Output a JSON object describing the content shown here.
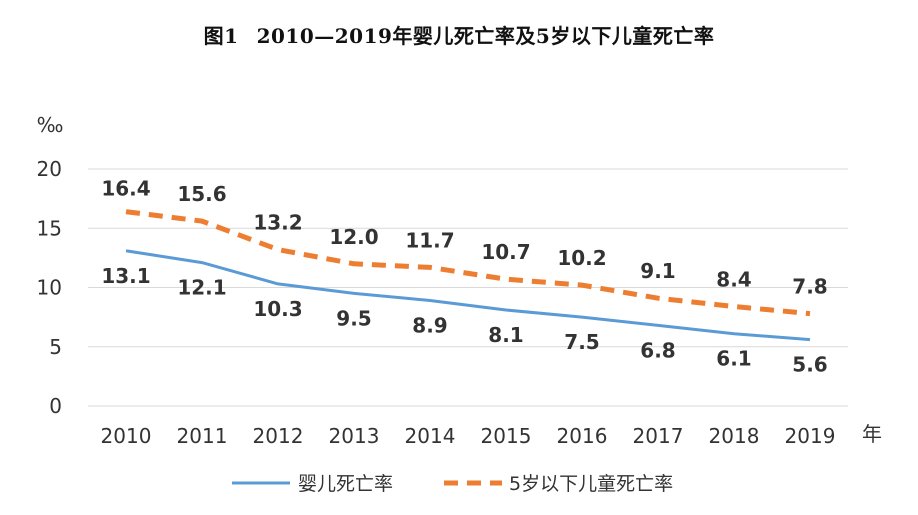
{
  "title": {
    "fig_no": "图1",
    "text": "2010—2019年婴儿死亡率及5岁以下儿童死亡率"
  },
  "chart_data": {
    "type": "line",
    "title": "2010—2019年婴儿死亡率及5岁以下儿童死亡率",
    "xlabel": "年",
    "ylabel": "‰",
    "ylim": [
      0,
      20
    ],
    "yticks": [
      "0",
      "5",
      "10",
      "15",
      "20"
    ],
    "grid": true,
    "legend": "bottom",
    "categories": [
      "2010",
      "2011",
      "2012",
      "2013",
      "2014",
      "2015",
      "2016",
      "2017",
      "2018",
      "2019"
    ],
    "series": [
      {
        "name": "婴儿死亡率",
        "style": "solid",
        "color": "#5B9BD5",
        "values": [
          13.1,
          12.1,
          10.3,
          9.5,
          8.9,
          8.1,
          7.5,
          6.8,
          6.1,
          5.6
        ],
        "labels": [
          "13.1",
          "12.1",
          "10.3",
          "9.5",
          "8.9",
          "8.1",
          "7.5",
          "6.8",
          "6.1",
          "5.6"
        ]
      },
      {
        "name": "5岁以下儿童死亡率",
        "style": "dashed",
        "color": "#ED7D31",
        "values": [
          16.4,
          15.6,
          13.2,
          12.0,
          11.7,
          10.7,
          10.2,
          9.1,
          8.4,
          7.8
        ],
        "labels": [
          "16.4",
          "15.6",
          "13.2",
          "12.0",
          "11.7",
          "10.7",
          "10.2",
          "9.1",
          "8.4",
          "7.8"
        ]
      }
    ]
  }
}
